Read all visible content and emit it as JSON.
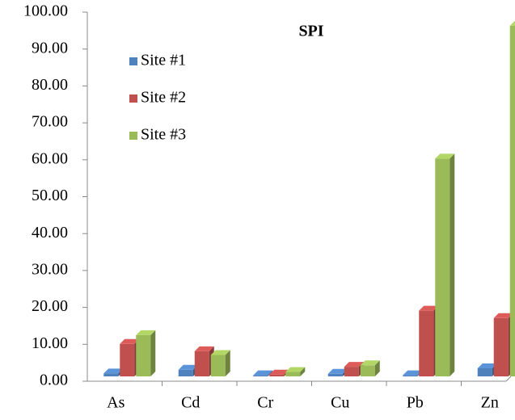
{
  "chart_data": {
    "type": "bar",
    "title": "SPI",
    "categories": [
      "As",
      "Cd",
      "Cr",
      "Cu",
      "Pb",
      "Zn"
    ],
    "series": [
      {
        "name": "Site #1",
        "color": "#4f81bd",
        "values": [
          0.8,
          1.8,
          0.3,
          0.7,
          0.3,
          2.2
        ]
      },
      {
        "name": "Site #2",
        "color": "#c0504d",
        "values": [
          8.8,
          6.8,
          0.5,
          2.6,
          17.8,
          15.8
        ]
      },
      {
        "name": "Site #3",
        "color": "#9bbb59",
        "values": [
          11.2,
          5.8,
          1.2,
          3.0,
          59,
          95
        ]
      }
    ],
    "ylim": [
      0,
      100
    ],
    "yticks": [
      {
        "value": 0,
        "label": "0.00"
      },
      {
        "value": 10,
        "label": "10.00"
      },
      {
        "value": 20,
        "label": "20.00"
      },
      {
        "value": 30,
        "label": "30.00"
      },
      {
        "value": 40,
        "label": "40.00"
      },
      {
        "value": 50,
        "label": "50.00"
      },
      {
        "value": 60,
        "label": "60.00"
      },
      {
        "value": 70,
        "label": "70.00"
      },
      {
        "value": 80,
        "label": "80.00"
      },
      {
        "value": 90,
        "label": "90.00"
      },
      {
        "value": 100,
        "label": "100.00"
      }
    ],
    "legend": "upper left"
  }
}
